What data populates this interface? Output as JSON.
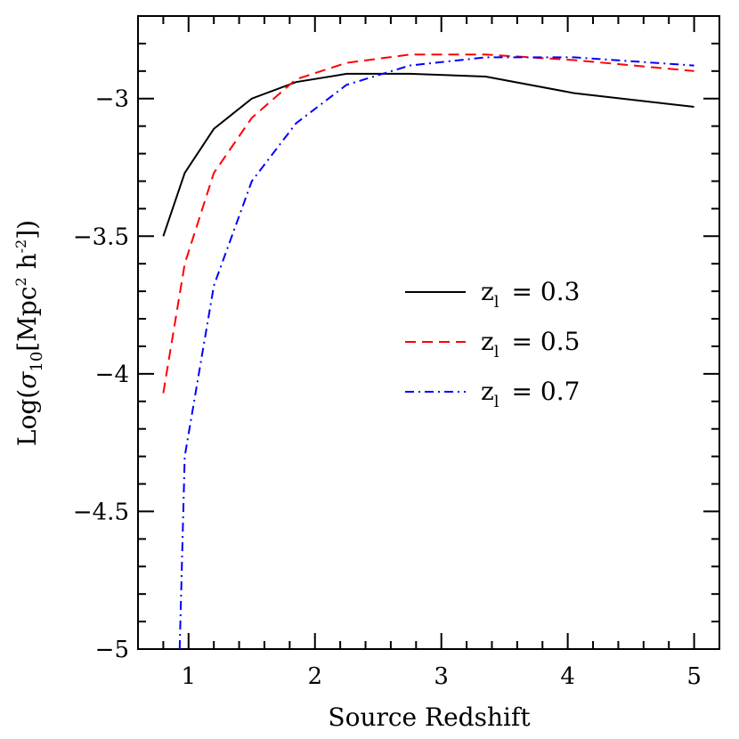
{
  "chart_data": {
    "type": "line",
    "xlabel": "Source Redshift",
    "ylabel": {
      "prefix": "Log(",
      "sigma": "σ",
      "sigma_sub": "10",
      "mid": "[Mpc",
      "sup1": "2",
      "mid2": " h",
      "sup2": "-2",
      "suffix": "])"
    },
    "xlim": [
      0.6,
      5.2
    ],
    "ylim": [
      -5,
      -2.7
    ],
    "xticks": [
      1,
      2,
      3,
      4,
      5
    ],
    "xtick_labels": [
      "1",
      "2",
      "3",
      "4",
      "5"
    ],
    "yticks": [
      -3,
      -3.5,
      -4,
      -4.5,
      -5
    ],
    "ytick_labels": [
      "−3",
      "−3.5",
      "−4",
      "−4.5",
      "−5"
    ],
    "grid": false,
    "legend_position": "right-middle",
    "series": [
      {
        "label_base": "z",
        "label_sub": "l",
        "label_value": "= 0.3",
        "color": "#000000",
        "dash": "solid",
        "x": [
          0.8,
          0.97,
          1.2,
          1.5,
          1.85,
          2.25,
          2.75,
          3.35,
          4.05,
          5.0
        ],
        "y": [
          -3.5,
          -3.27,
          -3.11,
          -3.0,
          -2.94,
          -2.91,
          -2.91,
          -2.92,
          -2.98,
          -3.03
        ]
      },
      {
        "label_base": "z",
        "label_sub": "l",
        "label_value": "= 0.5",
        "color": "#ff0000",
        "dash": "dashed",
        "x": [
          0.8,
          0.97,
          1.2,
          1.5,
          1.85,
          2.25,
          2.75,
          3.35,
          4.05,
          5.0
        ],
        "y": [
          -4.07,
          -3.6,
          -3.27,
          -3.07,
          -2.93,
          -2.87,
          -2.84,
          -2.84,
          -2.86,
          -2.9
        ]
      },
      {
        "label_base": "z",
        "label_sub": "l",
        "label_value": "= 0.7",
        "color": "#0000ff",
        "dash": "dashdot",
        "x": [
          0.93,
          0.97,
          1.2,
          1.5,
          1.85,
          2.25,
          2.75,
          3.35,
          4.05,
          5.0
        ],
        "y": [
          -5.0,
          -4.3,
          -3.68,
          -3.3,
          -3.09,
          -2.95,
          -2.88,
          -2.85,
          -2.85,
          -2.88
        ]
      }
    ]
  }
}
